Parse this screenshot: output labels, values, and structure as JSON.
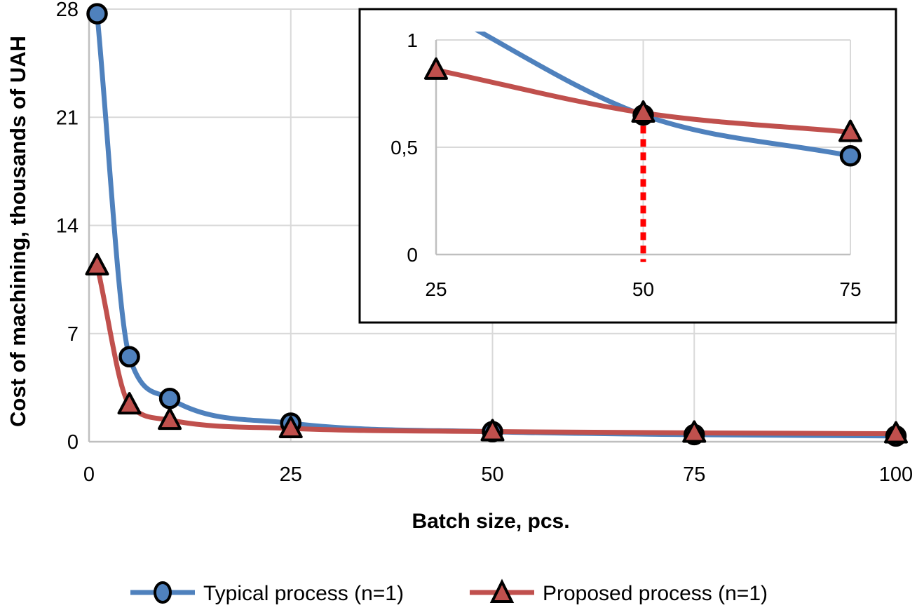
{
  "colors": {
    "typical": "#4F81BD",
    "proposed": "#C0504D",
    "marker_outline": "#000000",
    "grid": "#D9D9D9",
    "axis": "#BFBFBF",
    "dashed_line": "#FF0000",
    "inset_border": "#000000",
    "background": "#FFFFFF",
    "text": "#000000"
  },
  "chart_data": [
    {
      "type": "line",
      "role": "main",
      "title": "",
      "xlabel": "Batch size, pcs.",
      "ylabel": "Cost of machining, thousands of UAH",
      "xlim": [
        0,
        100
      ],
      "ylim": [
        0,
        28
      ],
      "x_ticks": [
        0,
        25,
        50,
        75,
        100
      ],
      "x_tick_labels": [
        "0",
        "25",
        "50",
        "75",
        "100"
      ],
      "y_ticks": [
        0,
        7,
        14,
        21,
        28
      ],
      "y_tick_labels": [
        "0",
        "7",
        "14",
        "21",
        "28"
      ],
      "grid": true,
      "legend_position": "bottom",
      "series": [
        {
          "name": "Typical process (n=1)",
          "marker": "circle",
          "color": "#4F81BD",
          "x": [
            1,
            5,
            10,
            25,
            50,
            75,
            100
          ],
          "y": [
            27.7,
            5.5,
            2.8,
            1.2,
            0.65,
            0.46,
            0.37
          ]
        },
        {
          "name": "Proposed process (n=1)",
          "marker": "triangle",
          "color": "#C0504D",
          "x": [
            1,
            5,
            10,
            25,
            50,
            75,
            100
          ],
          "y": [
            11.4,
            2.4,
            1.4,
            0.86,
            0.66,
            0.57,
            0.52
          ]
        }
      ]
    },
    {
      "type": "line",
      "role": "inset-zoom",
      "title": "",
      "xlabel": "",
      "ylabel": "",
      "xlim": [
        25,
        75
      ],
      "ylim": [
        0,
        1
      ],
      "x_ticks": [
        25,
        50,
        75
      ],
      "x_tick_labels": [
        "25",
        "50",
        "75"
      ],
      "y_ticks": [
        0,
        0.5,
        1
      ],
      "y_tick_labels": [
        "0",
        "0,5",
        "1"
      ],
      "grid": true,
      "series": [
        {
          "name": "Typical process (n=1)",
          "marker": "circle",
          "color": "#4F81BD",
          "x": [
            25,
            50,
            75
          ],
          "y": [
            1.15,
            0.65,
            0.46
          ]
        },
        {
          "name": "Proposed process (n=1)",
          "marker": "triangle",
          "color": "#C0504D",
          "x": [
            25,
            50,
            75
          ],
          "y": [
            0.86,
            0.66,
            0.57
          ]
        }
      ],
      "annotations": [
        {
          "type": "vline_dashed",
          "x": 50,
          "y_from": 0.6,
          "y_to": -0.035,
          "color": "#FF0000"
        }
      ]
    }
  ],
  "legend": {
    "items": [
      {
        "label": "Typical process (n=1)",
        "marker": "circle",
        "color": "#4F81BD"
      },
      {
        "label": "Proposed process (n=1)",
        "marker": "triangle",
        "color": "#C0504D"
      }
    ]
  }
}
